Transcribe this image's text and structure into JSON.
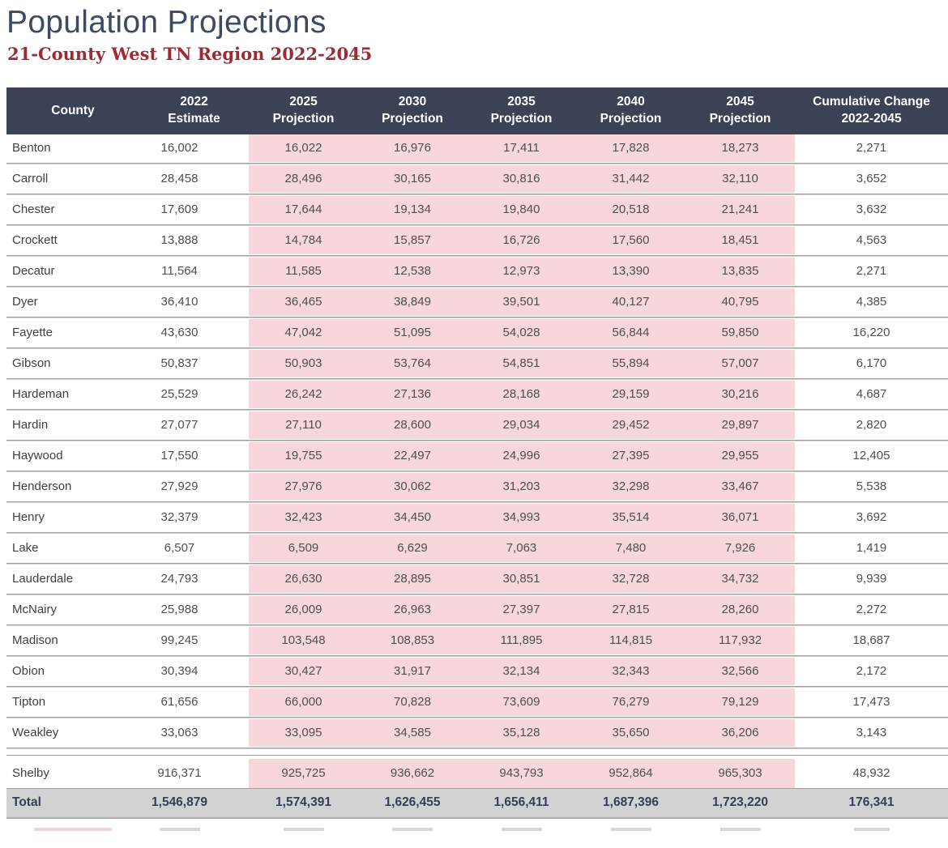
{
  "page": {
    "title": "Population Projections",
    "subtitle": "21-County West TN Region 2022-2045"
  },
  "colors": {
    "header_bg": "#3a4356",
    "projection_pink": "#f7d6dc",
    "title_color": "#3d4a63",
    "subtitle_red": "#9e2a33",
    "total_row_bg": "#d2d2d2",
    "body_text": "#4f4f4f",
    "separator_gray": "#9f9f9f"
  },
  "table": {
    "headers": [
      {
        "line1": "County",
        "line2": ""
      },
      {
        "line1": "2022",
        "line2": "Estimate"
      },
      {
        "line1": "2025",
        "line2": "Projection"
      },
      {
        "line1": "2030",
        "line2": "Projection"
      },
      {
        "line1": "2035",
        "line2": "Projection"
      },
      {
        "line1": "2040",
        "line2": "Projection"
      },
      {
        "line1": "2045",
        "line2": "Projection"
      },
      {
        "line1": "Cumulative Change",
        "line2": "2022-2045"
      }
    ],
    "rows": [
      {
        "county": "Benton",
        "values": [
          "16,002",
          "16,022",
          "16,976",
          "17,411",
          "17,828",
          "18,273",
          "2,271"
        ]
      },
      {
        "county": "Carroll",
        "values": [
          "28,458",
          "28,496",
          "30,165",
          "30,816",
          "31,442",
          "32,110",
          "3,652"
        ]
      },
      {
        "county": "Chester",
        "values": [
          "17,609",
          "17,644",
          "19,134",
          "19,840",
          "20,518",
          "21,241",
          "3,632"
        ]
      },
      {
        "county": "Crockett",
        "values": [
          "13,888",
          "14,784",
          "15,857",
          "16,726",
          "17,560",
          "18,451",
          "4,563"
        ]
      },
      {
        "county": "Decatur",
        "values": [
          "11,564",
          "11,585",
          "12,538",
          "12,973",
          "13,390",
          "13,835",
          "2,271"
        ]
      },
      {
        "county": "Dyer",
        "values": [
          "36,410",
          "36,465",
          "38,849",
          "39,501",
          "40,127",
          "40,795",
          "4,385"
        ]
      },
      {
        "county": "Fayette",
        "values": [
          "43,630",
          "47,042",
          "51,095",
          "54,028",
          "56,844",
          "59,850",
          "16,220"
        ]
      },
      {
        "county": "Gibson",
        "values": [
          "50,837",
          "50,903",
          "53,764",
          "54,851",
          "55,894",
          "57,007",
          "6,170"
        ]
      },
      {
        "county": "Hardeman",
        "values": [
          "25,529",
          "26,242",
          "27,136",
          "28,168",
          "29,159",
          "30,216",
          "4,687"
        ]
      },
      {
        "county": "Hardin",
        "values": [
          "27,077",
          "27,110",
          "28,600",
          "29,034",
          "29,452",
          "29,897",
          "2,820"
        ]
      },
      {
        "county": "Haywood",
        "values": [
          "17,550",
          "19,755",
          "22,497",
          "24,996",
          "27,395",
          "29,955",
          "12,405"
        ]
      },
      {
        "county": "Henderson",
        "values": [
          "27,929",
          "27,976",
          "30,062",
          "31,203",
          "32,298",
          "33,467",
          "5,538"
        ]
      },
      {
        "county": "Henry",
        "values": [
          "32,379",
          "32,423",
          "34,450",
          "34,993",
          "35,514",
          "36,071",
          "3,692"
        ]
      },
      {
        "county": "Lake",
        "values": [
          "6,507",
          "6,509",
          "6,629",
          "7,063",
          "7,480",
          "7,926",
          "1,419"
        ]
      },
      {
        "county": "Lauderdale",
        "values": [
          "24,793",
          "26,630",
          "28,895",
          "30,851",
          "32,728",
          "34,732",
          "9,939"
        ]
      },
      {
        "county": "McNairy",
        "values": [
          "25,988",
          "26,009",
          "26,963",
          "27,397",
          "27,815",
          "28,260",
          "2,272"
        ]
      },
      {
        "county": "Madison",
        "values": [
          "99,245",
          "103,548",
          "108,853",
          "111,895",
          "114,815",
          "117,932",
          "18,687"
        ]
      },
      {
        "county": "Obion",
        "values": [
          "30,394",
          "30,427",
          "31,917",
          "32,134",
          "32,343",
          "32,566",
          "2,172"
        ]
      },
      {
        "county": "Tipton",
        "values": [
          "61,656",
          "66,000",
          "70,828",
          "73,609",
          "76,279",
          "79,129",
          "17,473"
        ]
      },
      {
        "county": "Weakley",
        "values": [
          "33,063",
          "33,095",
          "34,585",
          "35,128",
          "35,650",
          "36,206",
          "3,143"
        ]
      }
    ],
    "shelby_row": {
      "county": "Shelby",
      "values": [
        "916,371",
        "925,725",
        "936,662",
        "943,793",
        "952,864",
        "965,303",
        "48,932"
      ]
    },
    "total_row": {
      "county": "Total",
      "values": [
        "1,546,879",
        "1,574,391",
        "1,626,455",
        "1,656,411",
        "1,687,396",
        "1,723,220",
        "176,341"
      ]
    }
  }
}
